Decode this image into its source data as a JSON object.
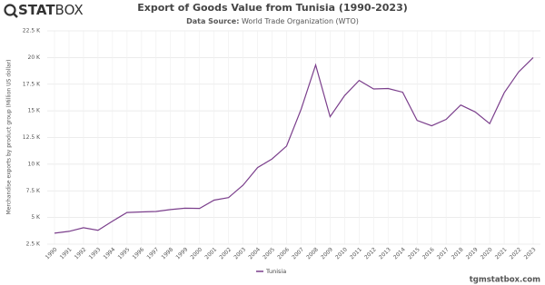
{
  "header": {
    "logo_bold": "STAT",
    "logo_light": "BOX",
    "source_label": "Data Source:",
    "source": "World Trade Organization (WTO)"
  },
  "footer": "tgmstatbox.com",
  "chart_data": {
    "type": "line",
    "title": "Export of Goods Value from Tunisia (1990-2023)",
    "y_label": "Merchandise exports by product group (Million US dollar)",
    "categories": [
      "1990",
      "1991",
      "1992",
      "1993",
      "1994",
      "1995",
      "1996",
      "1997",
      "1998",
      "1999",
      "2000",
      "2001",
      "2002",
      "2003",
      "2004",
      "2005",
      "2006",
      "2007",
      "2008",
      "2009",
      "2010",
      "2011",
      "2012",
      "2013",
      "2014",
      "2015",
      "2016",
      "2017",
      "2018",
      "2019",
      "2020",
      "2021",
      "2022",
      "2023"
    ],
    "series": [
      {
        "name": "Tunisia",
        "color": "#7b3f8c",
        "values": [
          3530,
          3700,
          4040,
          3800,
          4660,
          5470,
          5520,
          5560,
          5740,
          5870,
          5850,
          6630,
          6870,
          8030,
          9680,
          10490,
          11700,
          15150,
          19300,
          14450,
          16430,
          17850,
          17050,
          17100,
          16750,
          14100,
          13600,
          14200,
          15550,
          14900,
          13800,
          16700,
          18650,
          20000
        ]
      }
    ],
    "ylim": [
      2500,
      22500
    ],
    "yticks": [
      {
        "value": 2500,
        "label": "2.5 K"
      },
      {
        "value": 5000,
        "label": "5 K"
      },
      {
        "value": 7500,
        "label": "7.5 K"
      },
      {
        "value": 10000,
        "label": "10 K"
      },
      {
        "value": 12500,
        "label": "12.5 K"
      },
      {
        "value": 15000,
        "label": "15 K"
      },
      {
        "value": 17500,
        "label": "17.5 K"
      },
      {
        "value": 20000,
        "label": "20 K"
      },
      {
        "value": 22500,
        "label": "22.5 K"
      }
    ],
    "grid": true
  }
}
